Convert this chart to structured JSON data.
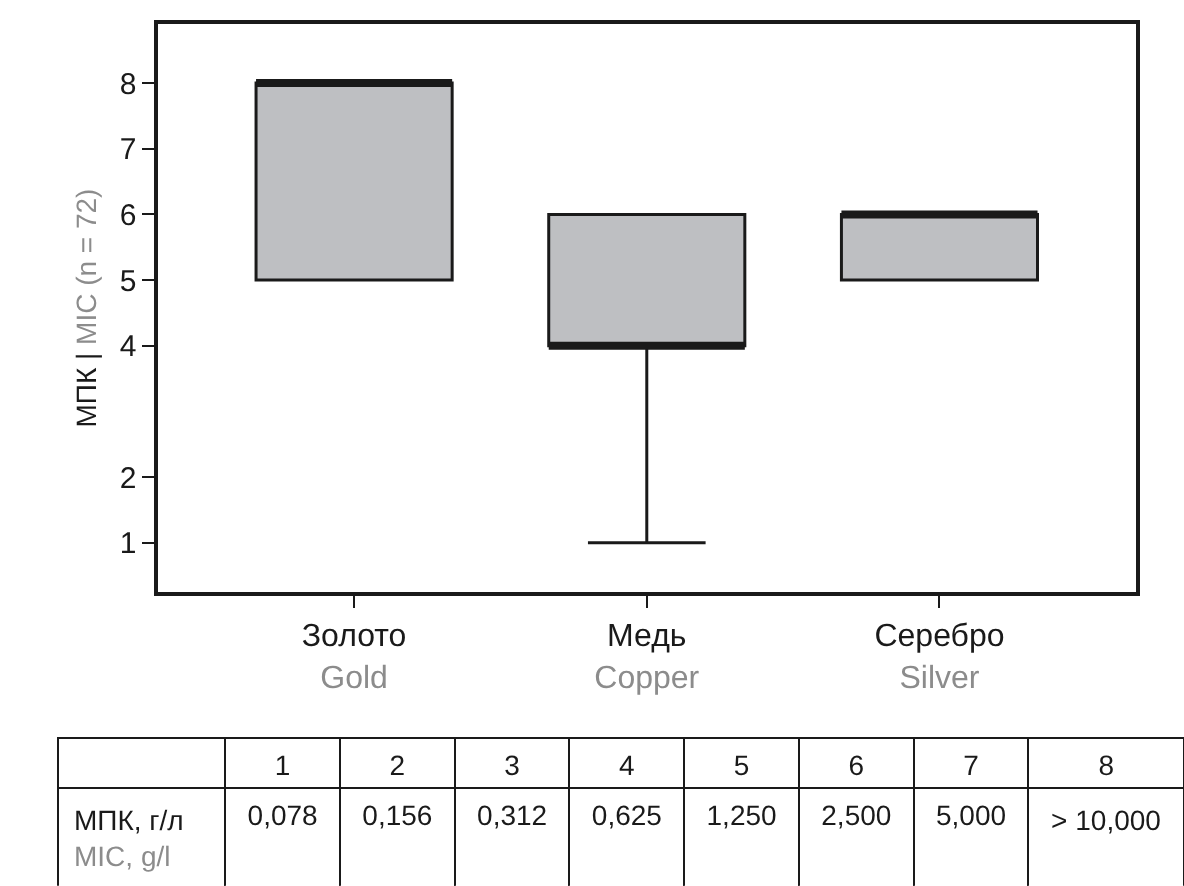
{
  "chart_data": {
    "type": "box",
    "ylabel": "МПК | MIC (n = 72)",
    "categories": [
      "Золото\nGold",
      "Медь\nCopper",
      "Серебро\nSilver"
    ],
    "boxes": [
      {
        "low": 5,
        "q1": 5,
        "median": 8,
        "q3": 8,
        "high": 8
      },
      {
        "low": 1,
        "q1": 4,
        "median": 4,
        "q3": 6,
        "high": 6
      },
      {
        "low": 5,
        "q1": 5,
        "median": 6,
        "q3": 6,
        "high": 6
      }
    ],
    "color": "#bebfc2",
    "ylim": [
      0.25,
      8.9
    ],
    "yticks": [
      1,
      2,
      4,
      5,
      6,
      7,
      8
    ],
    "annotations": [
      "1",
      "2",
      "3",
      "4",
      "5",
      "6",
      "7",
      "8",
      "МПК, г/л\nMIC, g/l",
      "0,078",
      "0,156",
      "0,312",
      "0,625",
      "1,250",
      "2,500",
      "5,000",
      "> 10,000"
    ]
  }
}
